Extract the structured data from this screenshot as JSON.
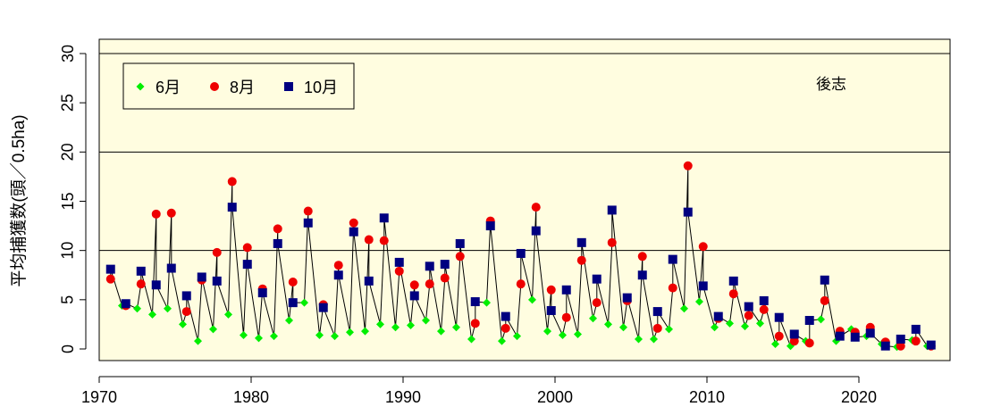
{
  "chart_data": {
    "type": "scatter",
    "region_label": "後志",
    "ylabel": "平均捕獲数(頭／0.5ha)",
    "xlim": [
      1970,
      2026
    ],
    "ylim": [
      0,
      30
    ],
    "x_ticks": [
      "1970",
      "1980",
      "1990",
      "2000",
      "2010",
      "2020"
    ],
    "y_ticks": [
      "0",
      "5",
      "10",
      "15",
      "20",
      "25",
      "30"
    ],
    "hlines": [
      10,
      20,
      30
    ],
    "legend": {
      "position": "top-left"
    },
    "colors": {
      "background": "#FFFDE0",
      "june": "#00EE00",
      "august": "#EE0000",
      "october": "#000080",
      "line": "#000000"
    },
    "series": [
      {
        "name": "6月",
        "marker": "diamond",
        "color": "#00EE00",
        "x": [
          1971.5,
          1972.5,
          1973.5,
          1974.5,
          1975.5,
          1976.5,
          1977.5,
          1978.5,
          1979.5,
          1980.5,
          1981.5,
          1982.5,
          1983.5,
          1984.5,
          1985.5,
          1986.5,
          1987.5,
          1988.5,
          1989.5,
          1990.5,
          1991.5,
          1992.5,
          1993.5,
          1994.5,
          1995.5,
          1996.5,
          1997.5,
          1998.5,
          1999.5,
          2000.5,
          2001.5,
          2002.5,
          2003.5,
          2004.5,
          2005.5,
          2006.5,
          2007.5,
          2008.5,
          2009.5,
          2010.5,
          2011.5,
          2012.5,
          2013.5,
          2014.5,
          2015.5,
          2016.5,
          2017.5,
          2018.5,
          2019.5,
          2020.5,
          2021.5,
          2022.5,
          2023.5,
          2024.5
        ],
        "y": [
          4.4,
          4.1,
          3.5,
          4.1,
          2.5,
          0.8,
          2.0,
          3.5,
          1.4,
          1.1,
          1.3,
          2.9,
          4.7,
          1.4,
          1.3,
          1.7,
          1.8,
          2.5,
          2.2,
          2.4,
          2.9,
          1.8,
          2.2,
          1.0,
          4.7,
          0.8,
          1.3,
          5.0,
          1.8,
          1.4,
          1.5,
          3.1,
          2.5,
          2.2,
          1.0,
          1.0,
          2.0,
          4.1,
          4.8,
          2.2,
          2.6,
          2.3,
          2.6,
          0.5,
          0.3,
          0.8,
          3.0,
          0.8,
          2.0,
          1.3,
          0.5,
          0.2,
          0.9,
          0.3
        ]
      },
      {
        "name": "8月",
        "marker": "circle",
        "color": "#EE0000",
        "x": [
          1970.75,
          1971.75,
          1972.75,
          1973.75,
          1974.75,
          1975.75,
          1976.75,
          1977.75,
          1978.75,
          1979.75,
          1980.75,
          1981.75,
          1982.75,
          1983.75,
          1984.75,
          1985.75,
          1986.75,
          1987.75,
          1988.75,
          1989.75,
          1990.75,
          1991.75,
          1992.75,
          1993.75,
          1994.75,
          1995.75,
          1996.75,
          1997.75,
          1998.75,
          1999.75,
          2000.75,
          2001.75,
          2002.75,
          2003.75,
          2004.75,
          2005.75,
          2006.75,
          2007.75,
          2008.75,
          2009.75,
          2010.75,
          2011.75,
          2012.75,
          2013.75,
          2014.75,
          2015.75,
          2016.75,
          2017.75,
          2018.75,
          2019.75,
          2020.75,
          2021.75,
          2022.75,
          2023.75,
          2024.75
        ],
        "y": [
          7.1,
          4.4,
          6.6,
          13.7,
          13.8,
          3.8,
          7.0,
          9.8,
          17.0,
          10.3,
          6.1,
          12.2,
          6.8,
          14.0,
          4.5,
          8.5,
          12.8,
          11.1,
          11.0,
          7.9,
          6.5,
          6.6,
          7.2,
          9.4,
          2.6,
          13.0,
          2.1,
          6.6,
          14.4,
          6.0,
          3.2,
          9.0,
          4.7,
          10.8,
          4.9,
          9.4,
          2.1,
          6.2,
          18.6,
          10.4,
          3.1,
          5.6,
          3.4,
          4.0,
          1.3,
          0.8,
          0.6,
          4.9,
          1.8,
          1.7,
          2.2,
          0.7,
          0.3,
          0.8,
          0.3
        ]
      },
      {
        "name": "10月",
        "marker": "square",
        "color": "#000080",
        "x": [
          1970.75,
          1971.75,
          1972.75,
          1973.75,
          1974.75,
          1975.75,
          1976.75,
          1977.75,
          1978.75,
          1979.75,
          1980.75,
          1981.75,
          1982.75,
          1983.75,
          1984.75,
          1985.75,
          1986.75,
          1987.75,
          1988.75,
          1989.75,
          1990.75,
          1991.75,
          1992.75,
          1993.75,
          1994.75,
          1995.75,
          1996.75,
          1997.75,
          1998.75,
          1999.75,
          2000.75,
          2001.75,
          2002.75,
          2003.75,
          2004.75,
          2005.75,
          2006.75,
          2007.75,
          2008.75,
          2009.75,
          2010.75,
          2011.75,
          2012.75,
          2013.75,
          2014.75,
          2015.75,
          2016.75,
          2017.75,
          2018.75,
          2019.75,
          2020.75,
          2021.75,
          2022.75,
          2023.75,
          2024.75
        ],
        "y": [
          8.1,
          4.6,
          7.9,
          6.5,
          8.2,
          5.4,
          7.3,
          6.9,
          14.4,
          8.6,
          5.7,
          10.7,
          4.7,
          12.8,
          4.2,
          7.5,
          11.9,
          6.9,
          13.3,
          8.8,
          5.4,
          8.4,
          8.6,
          10.7,
          4.8,
          12.5,
          3.3,
          9.7,
          12.0,
          3.9,
          6.0,
          10.8,
          7.1,
          14.1,
          5.2,
          7.5,
          3.8,
          9.1,
          13.9,
          6.4,
          3.3,
          6.9,
          4.3,
          4.9,
          3.2,
          1.5,
          2.9,
          7.0,
          1.3,
          1.2,
          1.6,
          0.3,
          1.0,
          2.0,
          0.4
        ]
      }
    ]
  }
}
